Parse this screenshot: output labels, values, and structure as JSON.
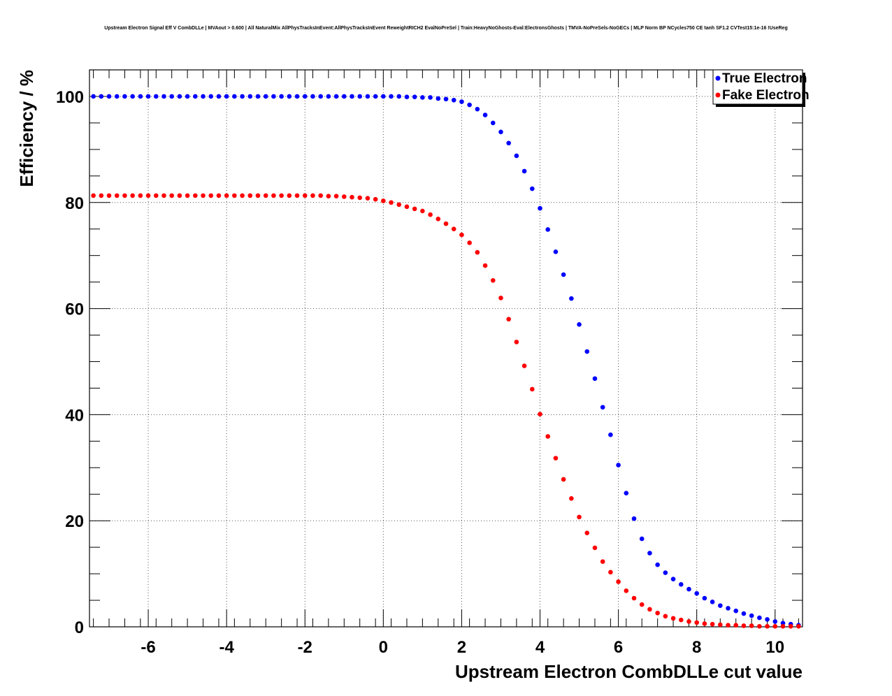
{
  "chart_data": {
    "type": "scatter",
    "title": "Upstream Electron Signal Eff V CombDLLe | MVAout > 0.600 | All NaturalMix AllPhysTracksInEvent:AllPhysTracksInEvent ReweightRICH2 EvalNoPreSel | Train:HeavyNoGhosts-Eval:ElectronsGhosts | TMVA-NoPreSels-NoGECs | MLP Norm BP NCycles750 CE tanh SF1.2 CVTest15:1e-16 !UseReg",
    "xlabel": "Upstream Electron CombDLLe cut value",
    "ylabel": "Efficiency / %",
    "xlim": [
      -7.5,
      10.7
    ],
    "ylim": [
      0,
      105
    ],
    "xticks": [
      "-6",
      "-4",
      "-2",
      "0",
      "2",
      "4",
      "6",
      "8",
      "10"
    ],
    "yticks": [
      "0",
      "20",
      "40",
      "60",
      "80",
      "100"
    ],
    "grid": true,
    "legend": "top-right",
    "series": [
      {
        "name": "True Electron",
        "color": "#0000ff",
        "x": [
          -7.4,
          -7.2,
          -7.0,
          -6.8,
          -6.6,
          -6.4,
          -6.2,
          -6.0,
          -5.8,
          -5.6,
          -5.4,
          -5.2,
          -5.0,
          -4.8,
          -4.6,
          -4.4,
          -4.2,
          -4.0,
          -3.8,
          -3.6,
          -3.4,
          -3.2,
          -3.0,
          -2.8,
          -2.6,
          -2.4,
          -2.2,
          -2.0,
          -1.8,
          -1.6,
          -1.4,
          -1.2,
          -1.0,
          -0.8,
          -0.6,
          -0.4,
          -0.2,
          0.0,
          0.2,
          0.4,
          0.6,
          0.8,
          1.0,
          1.2,
          1.4,
          1.6,
          1.8,
          2.0,
          2.2,
          2.4,
          2.6,
          2.8,
          3.0,
          3.2,
          3.4,
          3.6,
          3.8,
          4.0,
          4.2,
          4.4,
          4.6,
          4.8,
          5.0,
          5.2,
          5.4,
          5.6,
          5.8,
          6.0,
          6.2,
          6.4,
          6.6,
          6.8,
          7.0,
          7.2,
          7.4,
          7.6,
          7.8,
          8.0,
          8.2,
          8.4,
          8.6,
          8.8,
          9.0,
          9.2,
          9.4,
          9.6,
          9.8,
          10.0,
          10.2,
          10.4,
          10.6
        ],
        "y": [
          100,
          100,
          100,
          100,
          100,
          100,
          100,
          100,
          100,
          100,
          100,
          100,
          100,
          100,
          100,
          100,
          100,
          100,
          100,
          100,
          100,
          100,
          100,
          100,
          100,
          100,
          100,
          100,
          100,
          100,
          100,
          100,
          100,
          100,
          100,
          100,
          100,
          100,
          100,
          100,
          99.9,
          99.9,
          99.8,
          99.8,
          99.6,
          99.5,
          99.3,
          99.0,
          98.4,
          97.6,
          96.5,
          95.0,
          93.3,
          91.2,
          88.8,
          85.9,
          82.6,
          78.9,
          74.9,
          70.7,
          66.4,
          61.9,
          57.0,
          51.9,
          46.8,
          41.4,
          36.2,
          30.5,
          25.2,
          20.4,
          16.6,
          13.9,
          11.7,
          10.2,
          9.0,
          8.0,
          7.1,
          6.3,
          5.4,
          4.7,
          4.0,
          3.5,
          3.0,
          2.5,
          2.1,
          1.7,
          1.4,
          1.0,
          0.7,
          0.5,
          0.3
        ]
      },
      {
        "name": "Fake Electron",
        "color": "#ff0000",
        "x": [
          -7.4,
          -7.2,
          -7.0,
          -6.8,
          -6.6,
          -6.4,
          -6.2,
          -6.0,
          -5.8,
          -5.6,
          -5.4,
          -5.2,
          -5.0,
          -4.8,
          -4.6,
          -4.4,
          -4.2,
          -4.0,
          -3.8,
          -3.6,
          -3.4,
          -3.2,
          -3.0,
          -2.8,
          -2.6,
          -2.4,
          -2.2,
          -2.0,
          -1.8,
          -1.6,
          -1.4,
          -1.2,
          -1.0,
          -0.8,
          -0.6,
          -0.4,
          -0.2,
          0.0,
          0.2,
          0.4,
          0.6,
          0.8,
          1.0,
          1.2,
          1.4,
          1.6,
          1.8,
          2.0,
          2.2,
          2.4,
          2.6,
          2.8,
          3.0,
          3.2,
          3.4,
          3.6,
          3.8,
          4.0,
          4.2,
          4.4,
          4.6,
          4.8,
          5.0,
          5.2,
          5.4,
          5.6,
          5.8,
          6.0,
          6.2,
          6.4,
          6.6,
          6.8,
          7.0,
          7.2,
          7.4,
          7.6,
          7.8,
          8.0,
          8.2,
          8.4,
          8.6,
          8.8,
          9.0,
          9.2,
          9.4,
          9.6,
          9.8,
          10.0,
          10.2,
          10.4,
          10.6
        ],
        "y": [
          81.3,
          81.3,
          81.3,
          81.3,
          81.3,
          81.3,
          81.3,
          81.3,
          81.3,
          81.3,
          81.3,
          81.3,
          81.3,
          81.3,
          81.3,
          81.3,
          81.3,
          81.3,
          81.3,
          81.3,
          81.3,
          81.3,
          81.3,
          81.3,
          81.3,
          81.3,
          81.3,
          81.3,
          81.3,
          81.3,
          81.2,
          81.2,
          81.1,
          81.0,
          80.9,
          80.8,
          80.6,
          80.3,
          80.0,
          79.6,
          79.2,
          78.8,
          78.4,
          77.7,
          76.9,
          76.0,
          75.0,
          73.9,
          72.4,
          70.6,
          68.1,
          65.3,
          62.0,
          58.0,
          53.7,
          49.2,
          44.8,
          40.1,
          35.9,
          31.8,
          27.8,
          24.2,
          20.7,
          17.7,
          14.9,
          12.3,
          10.3,
          8.5,
          6.8,
          5.4,
          4.2,
          3.3,
          2.6,
          2.0,
          1.6,
          1.3,
          1.0,
          0.8,
          0.6,
          0.5,
          0.4,
          0.3,
          0.3,
          0.2,
          0.2,
          0.1,
          0.1,
          0.1,
          0.1,
          0.1,
          0.1
        ]
      }
    ]
  }
}
